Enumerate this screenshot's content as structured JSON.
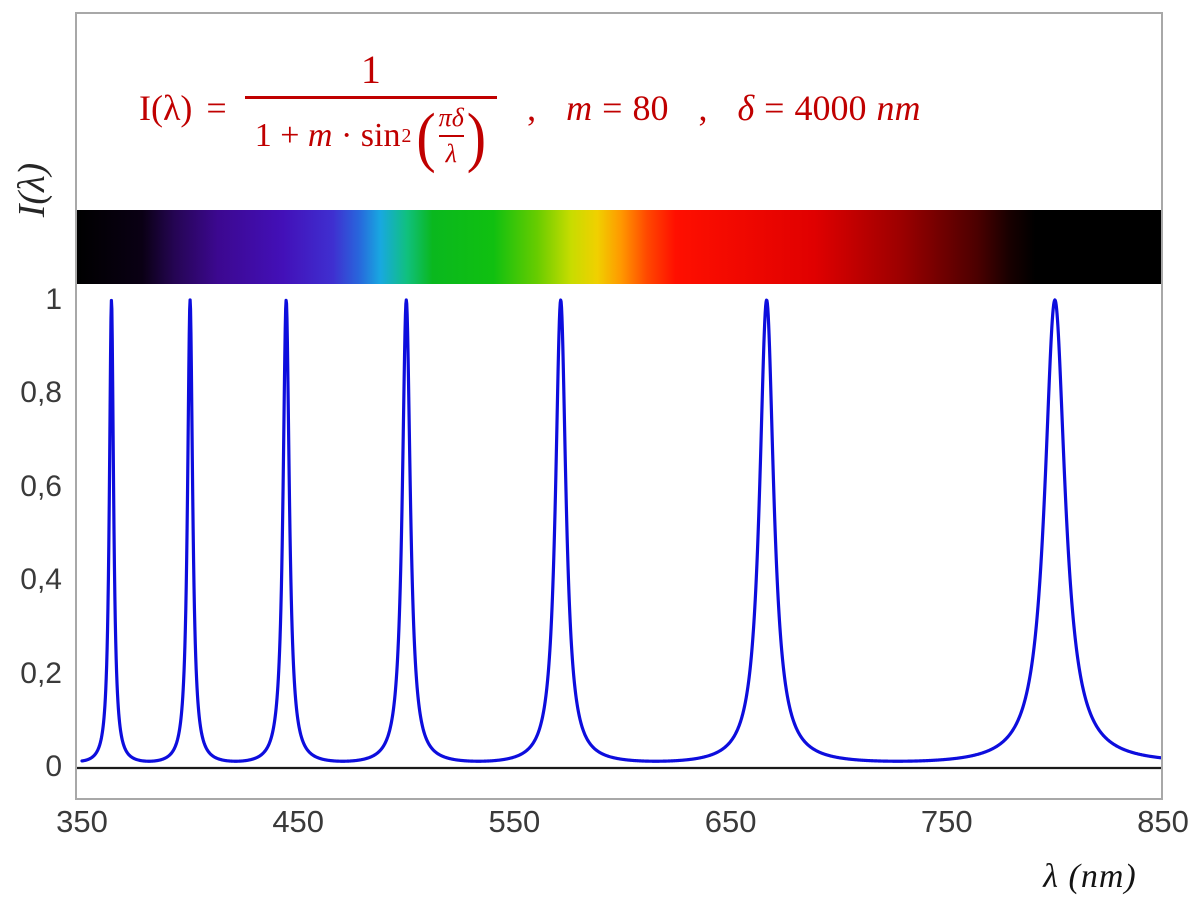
{
  "formula": {
    "color": "#c00000",
    "lhs": "I(λ)",
    "eq": "=",
    "frac_num": "1",
    "den_a": "1 +",
    "den_m": "m",
    "den_b": "· sin",
    "den_sup": "2",
    "lparen": "(",
    "rparen": ")",
    "inner_num": "πδ",
    "inner_den": "λ",
    "sep1": ",",
    "m_label": "m",
    "m_eq": "=",
    "m_value": "80",
    "sep2": ",",
    "delta_label": "δ",
    "delta_eq": "=",
    "delta_value": "4000",
    "delta_unit": "nm"
  },
  "axes": {
    "y_title": "I(λ)",
    "x_title": "λ  (nm)",
    "y_ticks": [
      {
        "label": "1",
        "value": 1.0
      },
      {
        "label": "0,8",
        "value": 0.8
      },
      {
        "label": "0,6",
        "value": 0.6
      },
      {
        "label": "0,4",
        "value": 0.4
      },
      {
        "label": "0,2",
        "value": 0.2
      },
      {
        "label": "0",
        "value": 0.0
      }
    ],
    "x_ticks": [
      {
        "label": "350",
        "value": 350
      },
      {
        "label": "450",
        "value": 450
      },
      {
        "label": "550",
        "value": 550
      },
      {
        "label": "650",
        "value": 650
      },
      {
        "label": "750",
        "value": 750
      },
      {
        "label": "850",
        "value": 850
      }
    ]
  },
  "chart_data": {
    "type": "line",
    "function": "I(λ) = 1 / (1 + m·sin²(πδ/λ))",
    "params": {
      "m": 80,
      "delta_nm": 4000
    },
    "x_range": [
      350,
      850
    ],
    "y_range": [
      0,
      1
    ],
    "xlabel": "λ (nm)",
    "ylabel": "I(λ)",
    "sample_step_nm": 0.2,
    "peak_wavelengths_nm": [
      363.6,
      400.0,
      444.4,
      500.0,
      571.4,
      666.7,
      800.0
    ],
    "peak_value": 1.0,
    "minimum_value": 0.0123,
    "line_color": "#0d0ddd",
    "line_width": 3.2,
    "axis_line_color": "#1a1a1a",
    "grid": false,
    "legend": false
  },
  "spectrum_bar": {
    "stops": [
      {
        "wl": 350,
        "color": "#000000"
      },
      {
        "wl": 380,
        "color": "#0a0014"
      },
      {
        "wl": 395,
        "color": "#250553"
      },
      {
        "wl": 415,
        "color": "#3c0890"
      },
      {
        "wl": 445,
        "color": "#4310b8"
      },
      {
        "wl": 468,
        "color": "#3f2fd0"
      },
      {
        "wl": 480,
        "color": "#2866dc"
      },
      {
        "wl": 490,
        "color": "#18a8e0"
      },
      {
        "wl": 502,
        "color": "#10c080"
      },
      {
        "wl": 514,
        "color": "#0ab81e"
      },
      {
        "wl": 542,
        "color": "#10c010"
      },
      {
        "wl": 562,
        "color": "#66cc00"
      },
      {
        "wl": 578,
        "color": "#c8dc00"
      },
      {
        "wl": 590,
        "color": "#f0d000"
      },
      {
        "wl": 601,
        "color": "#ff9800"
      },
      {
        "wl": 613,
        "color": "#ff4800"
      },
      {
        "wl": 626,
        "color": "#ff0f00"
      },
      {
        "wl": 690,
        "color": "#e00000"
      },
      {
        "wl": 730,
        "color": "#9c0000"
      },
      {
        "wl": 765,
        "color": "#4c0000"
      },
      {
        "wl": 780,
        "color": "#180000"
      },
      {
        "wl": 792,
        "color": "#000000"
      },
      {
        "wl": 850,
        "color": "#000000"
      }
    ]
  }
}
